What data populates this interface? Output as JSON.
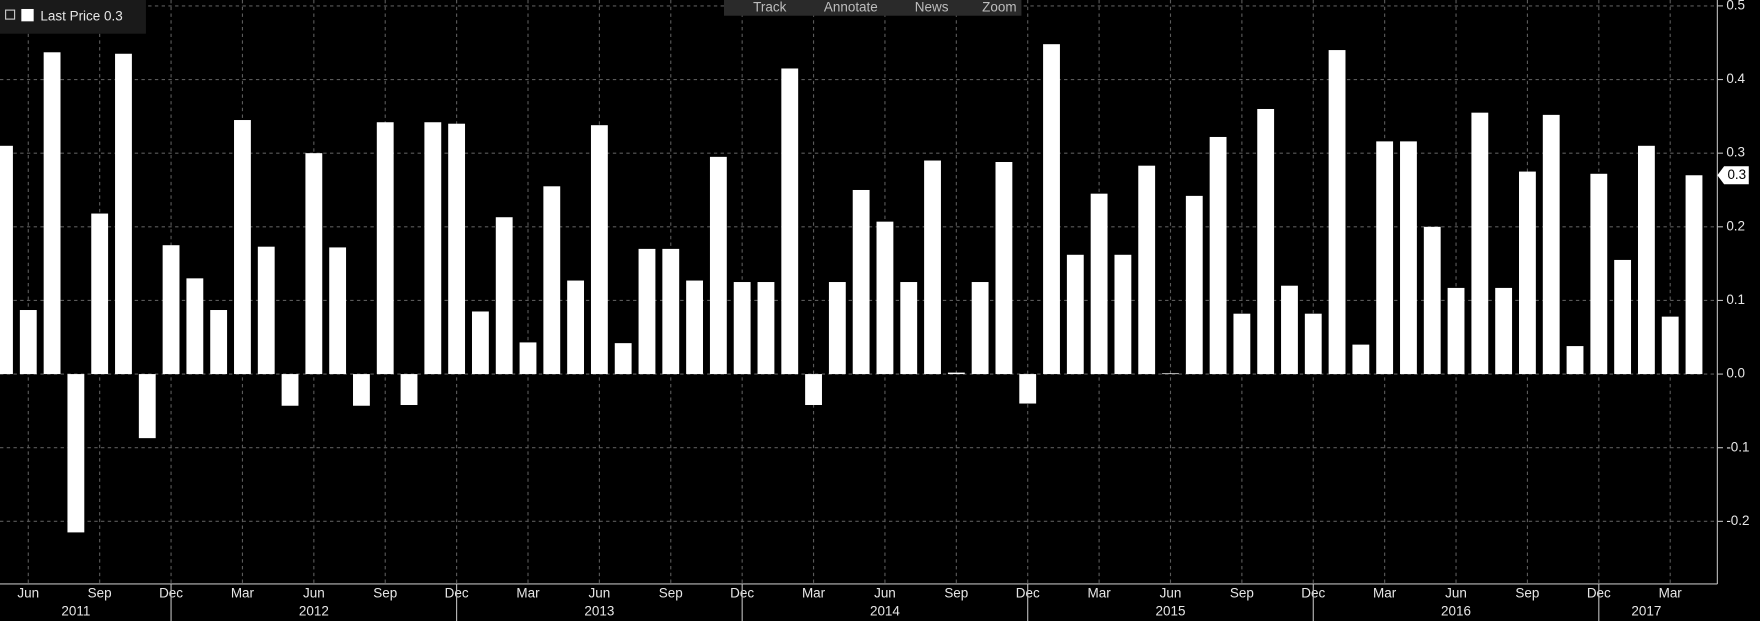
{
  "chart_data": {
    "type": "bar",
    "legend": "Last Price 0.3",
    "toolbar": [
      "Track",
      "Annotate",
      "News",
      "Zoom"
    ],
    "color": "#ffffff",
    "categories": [
      null,
      "Jun",
      null,
      null,
      "Sep",
      null,
      null,
      "Dec",
      null,
      null,
      "Mar",
      null,
      null,
      "Jun",
      null,
      null,
      "Sep",
      null,
      null,
      "Dec",
      null,
      null,
      "Mar",
      null,
      null,
      "Jun",
      null,
      null,
      "Sep",
      null,
      null,
      "Dec",
      null,
      null,
      "Mar",
      null,
      null,
      "Jun",
      null,
      null,
      "Sep",
      null,
      null,
      "Dec",
      null,
      null,
      "Mar",
      null,
      null,
      "Jun",
      null,
      null,
      "Sep",
      null,
      null,
      "Dec",
      null,
      null,
      "Mar",
      null,
      null,
      "Jun",
      null,
      null,
      "Sep",
      null,
      null,
      "Dec",
      null,
      null,
      "Mar",
      null
    ],
    "years": [
      null,
      null,
      null,
      "2011",
      null,
      null,
      null,
      null,
      null,
      null,
      null,
      null,
      null,
      "2012",
      null,
      null,
      null,
      null,
      null,
      null,
      null,
      null,
      null,
      null,
      null,
      "2013",
      null,
      null,
      null,
      null,
      null,
      null,
      null,
      null,
      null,
      null,
      null,
      "2014",
      null,
      null,
      null,
      null,
      null,
      null,
      null,
      null,
      null,
      null,
      null,
      "2015",
      null,
      null,
      null,
      null,
      null,
      null,
      null,
      null,
      null,
      null,
      null,
      "2016",
      null,
      null,
      null,
      null,
      null,
      null,
      null,
      "2017",
      null,
      null
    ],
    "values": [
      0.31,
      0.087,
      0.437,
      -0.215,
      0.218,
      0.435,
      -0.087,
      0.175,
      0.13,
      0.087,
      0.345,
      0.173,
      -0.043,
      0.3,
      0.172,
      -0.043,
      0.342,
      -0.042,
      0.342,
      0.34,
      0.085,
      0.213,
      0.043,
      0.255,
      0.127,
      0.338,
      0.042,
      0.17,
      0.17,
      0.127,
      0.295,
      0.125,
      0.125,
      0.415,
      -0.042,
      0.125,
      0.25,
      0.207,
      0.125,
      0.29,
      0.002,
      0.125,
      0.288,
      -0.04,
      0.448,
      0.162,
      0.245,
      0.162,
      0.283,
      0.001,
      0.242,
      0.322,
      0.082,
      0.36,
      0.12,
      0.082,
      0.44,
      0.04,
      0.316,
      0.316,
      0.2,
      0.117,
      0.355,
      0.117,
      0.275,
      0.352,
      0.038,
      0.272,
      0.155,
      0.31,
      0.078,
      0.27
    ],
    "last_label": {
      "value": 0.27,
      "label": "0.3"
    },
    "ylim": [
      -0.285,
      0.508
    ],
    "yticks": [
      0.5,
      0.4,
      0.3,
      0.2,
      0.1,
      {
        "value": 0,
        "label": "0.0"
      },
      -0.1,
      -0.2
    ],
    "grid": true
  }
}
